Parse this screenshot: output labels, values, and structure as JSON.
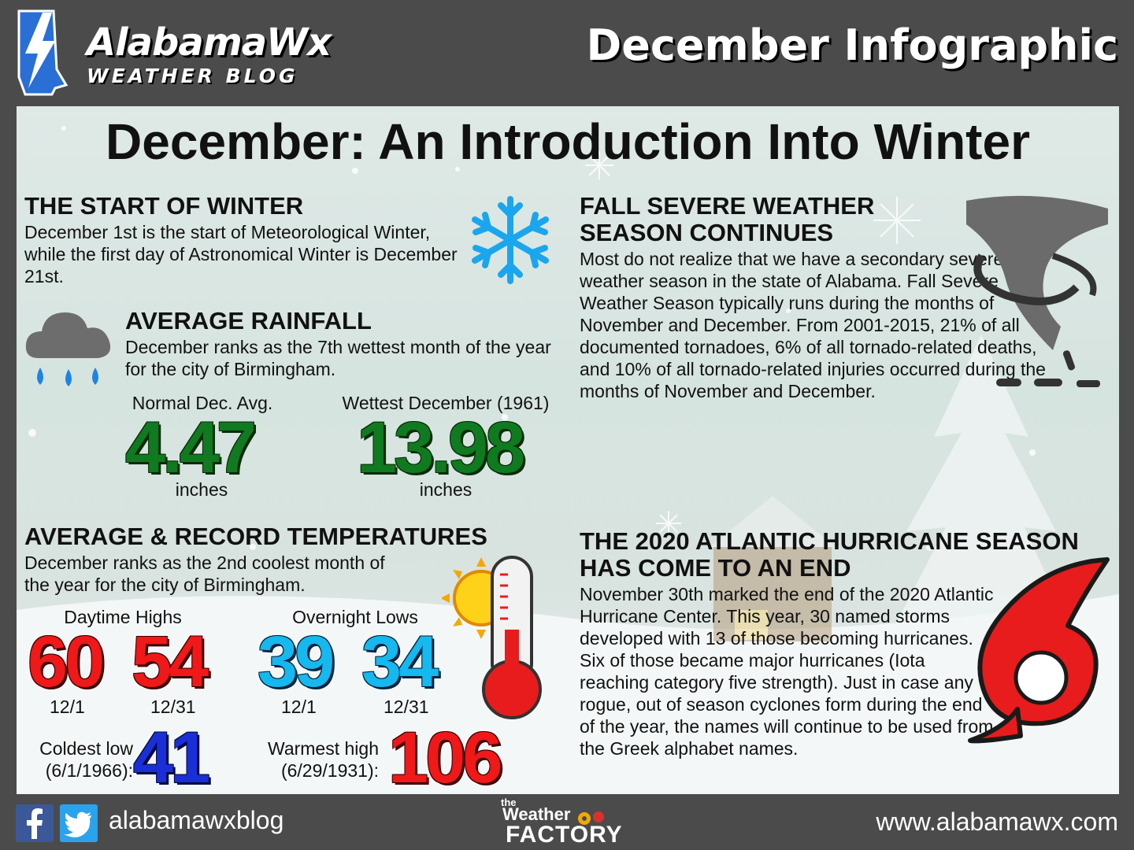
{
  "header": {
    "logo_title": "AlabamaWx",
    "logo_subtitle": "WEATHER BLOG",
    "page_title": "December Infographic"
  },
  "main_title": "December: An Introduction Into Winter",
  "start_of_winter": {
    "heading": "THE START OF WINTER",
    "text": "December 1st is the start of Meteorological Winter, while the first day of Astronomical Winter is December 21st."
  },
  "rainfall": {
    "heading": "AVERAGE RAINFALL",
    "text": "December ranks as the 7th wettest month of the year for the city of Birmingham.",
    "normal_label": "Normal Dec. Avg.",
    "normal_value": "4.47",
    "normal_unit": "inches",
    "wettest_label": "Wettest December (1961)",
    "wettest_value": "13.98",
    "wettest_unit": "inches"
  },
  "temperatures": {
    "heading": "AVERAGE & RECORD TEMPERATURES",
    "text": "December ranks as the 2nd coolest month of the year for the city of Birmingham.",
    "highs_label": "Daytime Highs",
    "lows_label": "Overnight Lows",
    "high_start": "60",
    "high_end": "54",
    "low_start": "39",
    "low_end": "34",
    "date_start": "12/1",
    "date_end": "12/31",
    "coldest_label_1": "Coldest low",
    "coldest_label_2": "(6/1/1966):",
    "coldest_value": "41",
    "warmest_label_1": "Warmest high",
    "warmest_label_2": "(6/29/1931):",
    "warmest_value": "106"
  },
  "severe": {
    "heading_1": "FALL SEVERE WEATHER",
    "heading_2": "SEASON CONTINUES",
    "text": "Most do not realize that we have a secondary severe weather season in the state of Alabama. Fall Severe Weather Season typically runs during the months of November and December. From 2001-2015, 21% of all documented tornadoes, 6% of all tornado-related deaths, and 10% of all tornado-related injuries occurred during the months of November and December."
  },
  "hurricane": {
    "heading_1": "THE 2020 ATLANTIC HURRICANE SEASON",
    "heading_2": "HAS COME TO AN END",
    "text": "November 30th marked the end of the 2020 Atlantic Hurricane Center. This year, 30 named storms developed with 13 of those becoming hurricanes. Six of those became major hurricanes (Iota reaching category five strength). Just in case any rogue, out of season cyclones form during the end of the year, the names will continue to be used from the Greek alphabet names."
  },
  "footer": {
    "social_handle": "alabamawxblog",
    "sponsor_small": "the",
    "sponsor_mid": "Weather",
    "sponsor_big": "FACTORY",
    "website": "www.alabamawx.com"
  },
  "colors": {
    "green": "#0f7a1f",
    "red": "#f01818",
    "blue": "#15b8ef",
    "navy": "#1a2fd8"
  }
}
